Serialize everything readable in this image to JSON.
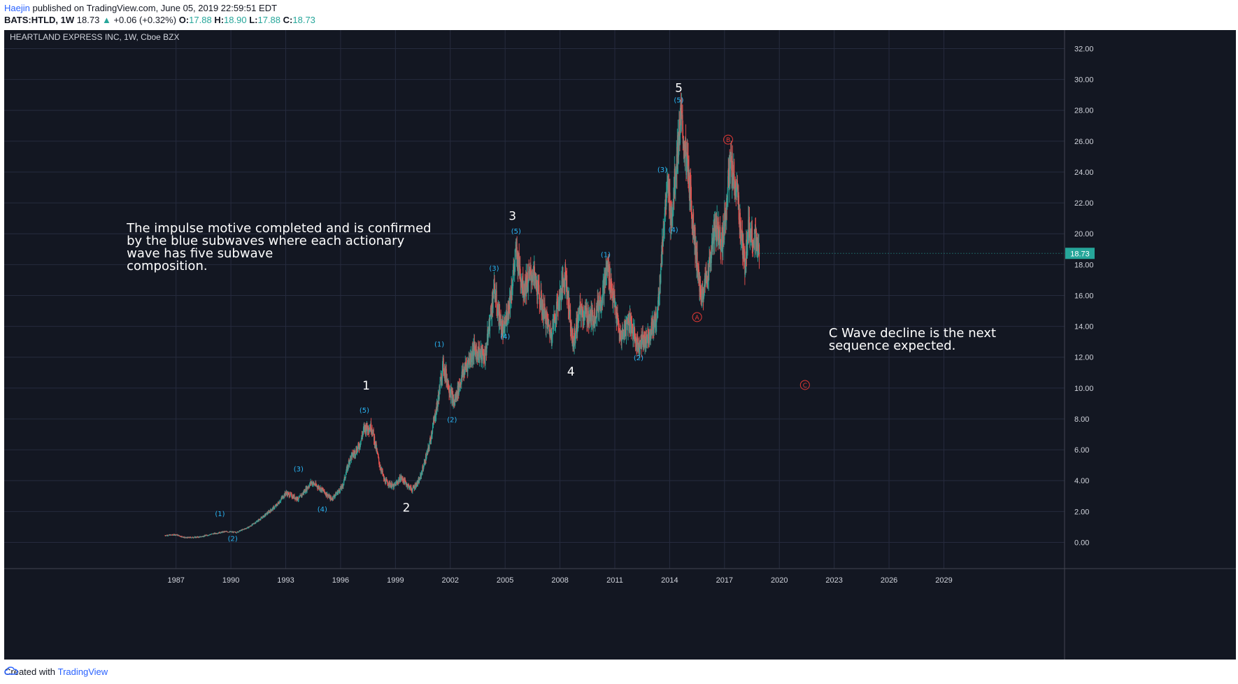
{
  "header": {
    "author": "Haejin",
    "published": " published on TradingView.com, June 05, 2019 22:59:51 EDT",
    "symbol_line": "BATS:HTLD, 1W",
    "last": "18.73",
    "up_arrow": "▲",
    "change": "+0.06 (+0.32%)",
    "o_label": "O:",
    "o": "17.88",
    "h_label": "H:",
    "h": "18.90",
    "l_label": "L:",
    "l": "17.88",
    "c_label": "C:",
    "c": "18.73"
  },
  "footer": {
    "created": "Created with",
    "brand": "TradingView"
  },
  "colors": {
    "background": "#131722",
    "grid": "#262b3e",
    "up": "#26a69a",
    "down": "#ef5350",
    "wave_blue": "#29b6f6",
    "wave_red": "#e53935"
  },
  "chart_data": {
    "type": "candlestick",
    "title": "HEARTLAND EXPRESS INC, 1W, Cboe BZX",
    "x_ticks": [
      "1987",
      "1990",
      "1993",
      "1996",
      "1999",
      "2002",
      "2005",
      "2008",
      "2011",
      "2014",
      "2017",
      "2020",
      "2023",
      "2026",
      "2029"
    ],
    "x_range": [
      1978.1,
      2036.1
    ],
    "y_ticks": [
      "32.00",
      "30.00",
      "28.00",
      "26.00",
      "24.00",
      "22.00",
      "20.00",
      "18.00",
      "16.00",
      "14.00",
      "12.00",
      "10.00",
      "8.00",
      "6.00",
      "4.00",
      "2.00",
      "0.00"
    ],
    "y_range": [
      -1.7,
      33.2
    ],
    "last_price": "18.73",
    "price_path": [
      [
        1986.9,
        0.45
      ],
      [
        1987.5,
        0.5
      ],
      [
        1988.0,
        0.3
      ],
      [
        1988.8,
        0.35
      ],
      [
        1989.5,
        0.55
      ],
      [
        1990.2,
        0.7
      ],
      [
        1990.8,
        0.65
      ],
      [
        1991.5,
        1.0
      ],
      [
        1992.2,
        1.6
      ],
      [
        1993.0,
        2.4
      ],
      [
        1993.5,
        3.2
      ],
      [
        1994.2,
        2.8
      ],
      [
        1994.9,
        3.9
      ],
      [
        1995.5,
        3.4
      ],
      [
        1996.0,
        2.8
      ],
      [
        1996.6,
        3.6
      ],
      [
        1997.0,
        5.4
      ],
      [
        1997.5,
        6.2
      ],
      [
        1997.8,
        7.4
      ],
      [
        1998.2,
        7.5
      ],
      [
        1998.6,
        5.2
      ],
      [
        1998.9,
        4.0
      ],
      [
        1999.4,
        3.6
      ],
      [
        1999.8,
        4.2
      ],
      [
        2000.4,
        3.4
      ],
      [
        2000.8,
        4.0
      ],
      [
        2001.3,
        6.0
      ],
      [
        2001.8,
        9.0
      ],
      [
        2002.1,
        11.5
      ],
      [
        2002.7,
        9.0
      ],
      [
        2003.2,
        11.0
      ],
      [
        2003.8,
        12.5
      ],
      [
        2004.4,
        12.0
      ],
      [
        2004.9,
        16.5
      ],
      [
        2005.1,
        15.0
      ],
      [
        2005.4,
        13.5
      ],
      [
        2005.8,
        16.0
      ],
      [
        2006.1,
        18.8
      ],
      [
        2006.5,
        16.5
      ],
      [
        2007.0,
        17.5
      ],
      [
        2007.6,
        15.0
      ],
      [
        2008.0,
        13.5
      ],
      [
        2008.5,
        16.0
      ],
      [
        2008.8,
        17.5
      ],
      [
        2009.2,
        12.8
      ],
      [
        2009.6,
        15.0
      ],
      [
        2010.3,
        14.5
      ],
      [
        2010.8,
        16.0
      ],
      [
        2011.1,
        17.9
      ],
      [
        2011.4,
        16.0
      ],
      [
        2011.8,
        13.2
      ],
      [
        2012.3,
        14.5
      ],
      [
        2012.7,
        12.8
      ],
      [
        2013.2,
        13.2
      ],
      [
        2013.8,
        14.5
      ],
      [
        2014.0,
        17.5
      ],
      [
        2014.2,
        21.0
      ],
      [
        2014.4,
        23.0
      ],
      [
        2014.6,
        21.0
      ],
      [
        2014.9,
        25.0
      ],
      [
        2015.1,
        27.5
      ],
      [
        2015.5,
        24.0
      ],
      [
        2015.8,
        20.5
      ],
      [
        2016.2,
        15.8
      ],
      [
        2016.6,
        17.5
      ],
      [
        2017.0,
        20.5
      ],
      [
        2017.4,
        19.5
      ],
      [
        2017.8,
        24.5
      ],
      [
        2018.2,
        22.5
      ],
      [
        2018.6,
        17.8
      ],
      [
        2018.8,
        20.5
      ],
      [
        2019.2,
        19.5
      ],
      [
        2019.4,
        18.73
      ]
    ],
    "annotations": {
      "main_waves": [
        {
          "label": "1",
          "x": 1997.9,
          "y": 9.9
        },
        {
          "label": "2",
          "x": 2000.1,
          "y": 2.0
        },
        {
          "label": "3",
          "x": 2005.9,
          "y": 20.9
        },
        {
          "label": "4",
          "x": 2009.1,
          "y": 10.8
        },
        {
          "label": "5",
          "x": 2015.0,
          "y": 29.2
        }
      ],
      "subwaves": [
        {
          "label": "(1)",
          "x": 1989.9,
          "y": 1.7
        },
        {
          "label": "(2)",
          "x": 1990.6,
          "y": 0.1
        },
        {
          "label": "(3)",
          "x": 1994.2,
          "y": 4.6
        },
        {
          "label": "(4)",
          "x": 1995.5,
          "y": 2.0
        },
        {
          "label": "(5)",
          "x": 1997.8,
          "y": 8.4
        },
        {
          "label": "(1)",
          "x": 2001.9,
          "y": 12.7
        },
        {
          "label": "(2)",
          "x": 2002.6,
          "y": 7.8
        },
        {
          "label": "(3)",
          "x": 2004.9,
          "y": 17.6
        },
        {
          "label": "(4)",
          "x": 2005.5,
          "y": 13.2
        },
        {
          "label": "(5)",
          "x": 2006.1,
          "y": 20.0
        },
        {
          "label": "(1)",
          "x": 2011.0,
          "y": 18.5
        },
        {
          "label": "(2)",
          "x": 2012.8,
          "y": 11.8
        },
        {
          "label": "(3)",
          "x": 2014.1,
          "y": 24.0
        },
        {
          "label": "(4)",
          "x": 2014.7,
          "y": 20.1
        },
        {
          "label": "(5)",
          "x": 2015.0,
          "y": 28.5
        }
      ],
      "corrective": [
        {
          "label": "A",
          "x": 2016.0,
          "y": 14.6
        },
        {
          "label": "B",
          "x": 2017.7,
          "y": 26.1
        },
        {
          "label": "C",
          "x": 2021.9,
          "y": 10.2
        }
      ],
      "notes": [
        {
          "lines": [
            "The impulse motive completed and is confirmed",
            "by the blue subwaves where each actionary",
            "wave has five subwave",
            "composition."
          ],
          "x": 1984.8,
          "y": 20.1
        },
        {
          "lines": [
            "C Wave decline is the next",
            "sequence expected."
          ],
          "x": 2023.2,
          "y": 13.3
        }
      ]
    }
  }
}
